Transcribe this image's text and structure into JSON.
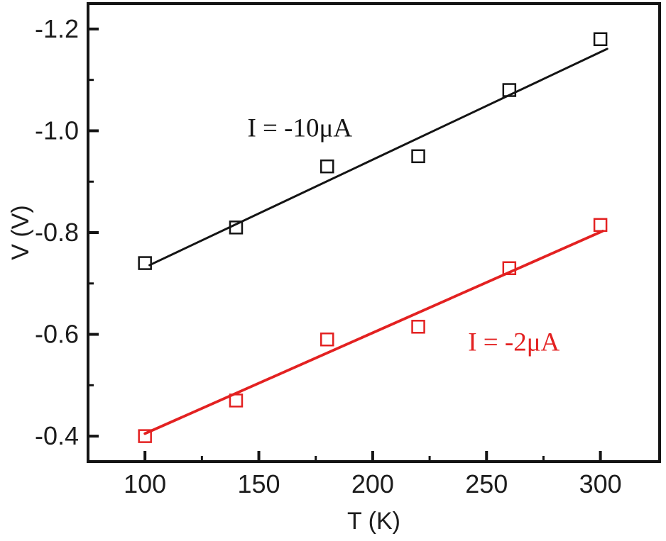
{
  "chart_data": {
    "type": "scatter",
    "title": "",
    "xlabel": "T (K)",
    "ylabel": "V (V)",
    "x_range": [
      75,
      326
    ],
    "y_range_top_to_bottom": [
      -1.25,
      -0.35
    ],
    "grid": false,
    "legend_position": "inline-annotations",
    "axis_color": "#141414",
    "background": "#ffffff",
    "x_ticks": [
      {
        "value": 100,
        "label": "100"
      },
      {
        "value": 150,
        "label": "150"
      },
      {
        "value": 200,
        "label": "200"
      },
      {
        "value": 250,
        "label": "250"
      },
      {
        "value": 300,
        "label": "300"
      }
    ],
    "x_minor_ticks": [
      125,
      175,
      225,
      275
    ],
    "y_ticks": [
      {
        "value": -1.2,
        "label": "-1.2"
      },
      {
        "value": -1.0,
        "label": "-1.0"
      },
      {
        "value": -0.8,
        "label": "-0.8"
      },
      {
        "value": -0.6,
        "label": "-0.6"
      },
      {
        "value": -0.4,
        "label": "-0.4"
      }
    ],
    "y_minor_ticks": [
      -1.1,
      -0.9,
      -0.7,
      -0.5
    ],
    "series": [
      {
        "name": "I = -10uA",
        "slug": "i-10ua",
        "color": "#141414",
        "marker": "open-square",
        "points": [
          [
            100,
            -0.74
          ],
          [
            140,
            -0.81
          ],
          [
            180,
            -0.93
          ],
          [
            220,
            -0.95
          ],
          [
            260,
            -1.08
          ],
          [
            300,
            -1.18
          ]
        ],
        "fit_line": [
          [
            102,
            -0.736
          ],
          [
            303,
            -1.161
          ]
        ]
      },
      {
        "name": "I = -2uA",
        "slug": "i-2ua",
        "color": "#e32121",
        "marker": "open-square",
        "points": [
          [
            100,
            -0.4
          ],
          [
            140,
            -0.47
          ],
          [
            180,
            -0.59
          ],
          [
            220,
            -0.615
          ],
          [
            260,
            -0.73
          ],
          [
            300,
            -0.815
          ]
        ],
        "fit_line": [
          [
            100,
            -0.405
          ],
          [
            301,
            -0.803
          ]
        ]
      }
    ],
    "annotations": [
      {
        "text": "I = -10μA",
        "x": 168,
        "y": -1.007,
        "color": "#141414",
        "series_slug": "i-10ua"
      },
      {
        "text": "I = -2μA",
        "x": 262,
        "y": -0.586,
        "color": "#e32121",
        "series_slug": "i-2ua"
      }
    ]
  }
}
